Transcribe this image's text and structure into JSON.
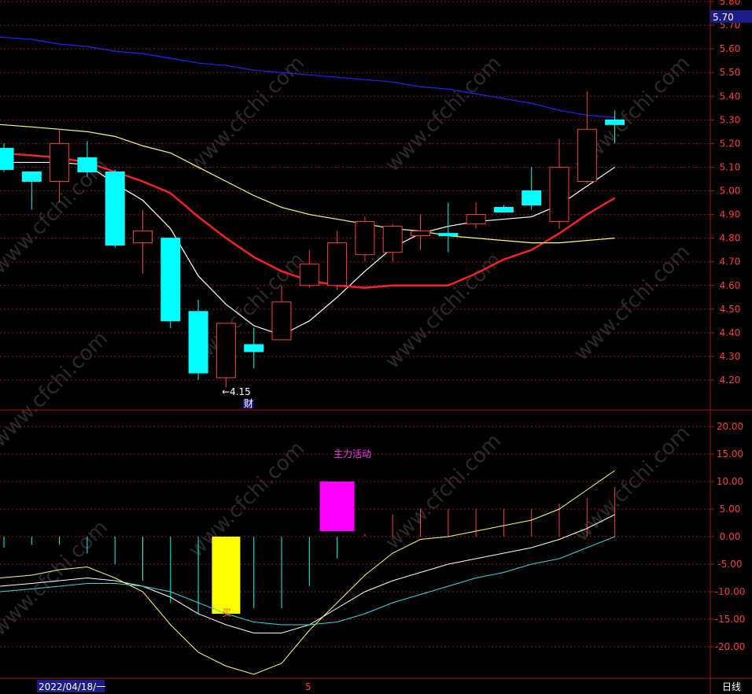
{
  "watermark": "www.cfchi.com",
  "colors": {
    "up": "#ff3b3b",
    "down": "#00ffff",
    "grid": "#8b1a1a",
    "axis": "#b01515",
    "ma5": "#ffffff",
    "ma10": "#ff2020",
    "ma20": "#ffff66",
    "ma60": "#2222ff",
    "price_tag_bg": "#1c1c8c"
  },
  "chart_data": [
    {
      "type": "candlestick",
      "ylim": [
        4.1,
        5.8
      ],
      "yticks": [
        "5.80",
        "5.70",
        "5.60",
        "5.50",
        "5.40",
        "5.30",
        "5.20",
        "5.10",
        "5.00",
        "4.90",
        "4.80",
        "4.70",
        "4.60",
        "4.50",
        "4.40",
        "4.30",
        "4.20"
      ],
      "current_price": "5.70",
      "low_marker": "←4.15",
      "event_marker": "财",
      "candles": [
        {
          "o": 5.18,
          "h": 5.2,
          "l": 5.08,
          "c": 5.09
        },
        {
          "o": 5.08,
          "h": 5.08,
          "l": 4.92,
          "c": 5.04
        },
        {
          "o": 5.04,
          "h": 5.26,
          "l": 4.95,
          "c": 5.2
        },
        {
          "o": 5.14,
          "h": 5.21,
          "l": 5.06,
          "c": 5.08
        },
        {
          "o": 5.08,
          "h": 5.09,
          "l": 4.76,
          "c": 4.77
        },
        {
          "o": 4.78,
          "h": 4.92,
          "l": 4.65,
          "c": 4.83
        },
        {
          "o": 4.8,
          "h": 4.8,
          "l": 4.42,
          "c": 4.45
        },
        {
          "o": 4.49,
          "h": 4.54,
          "l": 4.2,
          "c": 4.23
        },
        {
          "o": 4.21,
          "h": 4.44,
          "l": 4.17,
          "c": 4.44
        },
        {
          "o": 4.35,
          "h": 4.42,
          "l": 4.25,
          "c": 4.32
        },
        {
          "o": 4.37,
          "h": 4.6,
          "l": 4.37,
          "c": 4.53
        },
        {
          "o": 4.6,
          "h": 4.75,
          "l": 4.59,
          "c": 4.69
        },
        {
          "o": 4.6,
          "h": 4.83,
          "l": 4.58,
          "c": 4.78
        },
        {
          "o": 4.73,
          "h": 4.89,
          "l": 4.7,
          "c": 4.87
        },
        {
          "o": 4.74,
          "h": 4.86,
          "l": 4.7,
          "c": 4.85
        },
        {
          "o": 4.81,
          "h": 4.9,
          "l": 4.75,
          "c": 4.83
        },
        {
          "o": 4.82,
          "h": 4.95,
          "l": 4.74,
          "c": 4.81
        },
        {
          "o": 4.86,
          "h": 4.95,
          "l": 4.84,
          "c": 4.9
        },
        {
          "o": 4.93,
          "h": 4.94,
          "l": 4.92,
          "c": 4.91
        },
        {
          "o": 5.0,
          "h": 5.1,
          "l": 4.92,
          "c": 4.94
        },
        {
          "o": 4.87,
          "h": 5.22,
          "l": 4.84,
          "c": 5.1
        },
        {
          "o": 5.04,
          "h": 5.42,
          "l": 5.03,
          "c": 5.26
        },
        {
          "o": 5.3,
          "h": 5.34,
          "l": 5.2,
          "c": 5.28
        }
      ],
      "series": [
        {
          "key": "ma5",
          "values": [
            5.12,
            5.12,
            5.12,
            5.11,
            5.03,
            4.96,
            4.84,
            4.64,
            4.52,
            4.43,
            4.39,
            4.45,
            4.55,
            4.66,
            4.76,
            4.82,
            4.85,
            4.87,
            4.88,
            4.89,
            4.94,
            5.02,
            5.1
          ]
        },
        {
          "key": "ma10",
          "values": [
            5.16,
            5.15,
            5.14,
            5.12,
            5.08,
            5.04,
            4.99,
            4.89,
            4.8,
            4.72,
            4.66,
            4.62,
            4.6,
            4.59,
            4.6,
            4.6,
            4.6,
            4.65,
            4.71,
            4.75,
            4.82,
            4.9,
            4.97
          ]
        },
        {
          "key": "ma20",
          "values": [
            5.28,
            5.27,
            5.26,
            5.25,
            5.23,
            5.19,
            5.16,
            5.1,
            5.04,
            4.98,
            4.93,
            4.9,
            4.88,
            4.86,
            4.84,
            4.83,
            4.81,
            4.8,
            4.79,
            4.78,
            4.78,
            4.79,
            4.8
          ]
        },
        {
          "key": "ma60",
          "values": [
            5.65,
            5.64,
            5.62,
            5.61,
            5.59,
            5.58,
            5.56,
            5.54,
            5.53,
            5.51,
            5.5,
            5.49,
            5.48,
            5.47,
            5.46,
            5.44,
            5.43,
            5.41,
            5.39,
            5.37,
            5.34,
            5.32,
            5.31
          ]
        }
      ]
    },
    {
      "type": "bar",
      "ylim": [
        -25,
        22
      ],
      "yticks": [
        "20.00",
        "15.00",
        "10.00",
        "5.00",
        "0.00",
        "-5.00",
        "-10.00",
        "-15.00",
        "-20.00"
      ],
      "label": "主力活动",
      "signal": "买",
      "histogram": [
        -2,
        -1.5,
        -1.5,
        -3,
        -5,
        -8,
        -12,
        -14,
        -14,
        -13,
        -13,
        -9,
        -4,
        0.5,
        4,
        5,
        5,
        5,
        5,
        5,
        6,
        7,
        9
      ],
      "yellow_block": {
        "index": 8,
        "top": 0,
        "bottom": -14
      },
      "magenta_block": {
        "index": 12,
        "top": 10,
        "bottom": 1
      },
      "series": [
        {
          "key": "line_yellow",
          "values": [
            -7.5,
            -7,
            -6,
            -5.5,
            -7.5,
            -10,
            -16,
            -21,
            -23.5,
            -25,
            -23,
            -17,
            -12,
            -7,
            -3,
            -0.5,
            0,
            1,
            2,
            3,
            5,
            8.5,
            12
          ]
        },
        {
          "key": "line_white",
          "values": [
            -9,
            -8.5,
            -8,
            -7.5,
            -8,
            -9,
            -11,
            -14,
            -16,
            -17.5,
            -17.5,
            -16,
            -13,
            -10,
            -8,
            -6.5,
            -5,
            -4,
            -3,
            -2,
            -0.5,
            1.5,
            4
          ]
        },
        {
          "key": "line_cyan",
          "values": [
            -10,
            -9.5,
            -9,
            -8.5,
            -8.5,
            -9,
            -10,
            -12,
            -14,
            -15.5,
            -16,
            -16,
            -15.5,
            -14,
            -12,
            -10.5,
            -9,
            -7.5,
            -6.5,
            -5,
            -4,
            -2,
            0
          ]
        }
      ]
    }
  ],
  "footer": {
    "date": "2022/04/18/一",
    "marker": "5",
    "period": "日线"
  }
}
